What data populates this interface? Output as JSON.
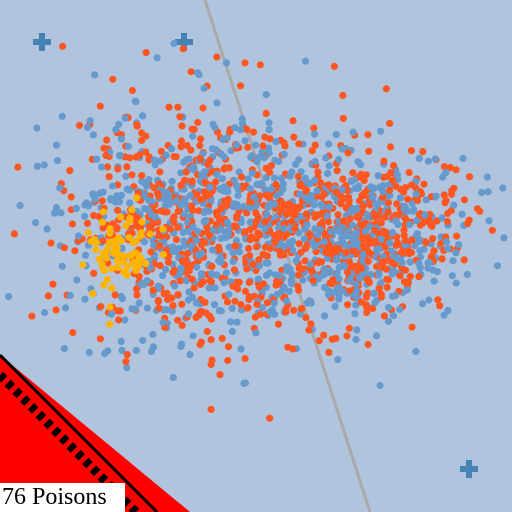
{
  "game": {
    "background_color": "#b0c4de",
    "cross_color": "#4682b4",
    "boundary_line_color": "#a9a9a9",
    "corner_zone_color": "#ff0000",
    "corner_border_color": "#000000",
    "point_colors": {
      "blue": "#6699cc",
      "orange": "#ff5722",
      "yellow": "#ffb400"
    },
    "point_counts": {
      "blue": 900,
      "orange": 1000,
      "yellow": 70
    },
    "markers": [
      "plus-marker",
      "plus-marker",
      "plus-marker",
      "plus-marker"
    ],
    "status": {
      "poison_text": "76 Poisons"
    }
  }
}
